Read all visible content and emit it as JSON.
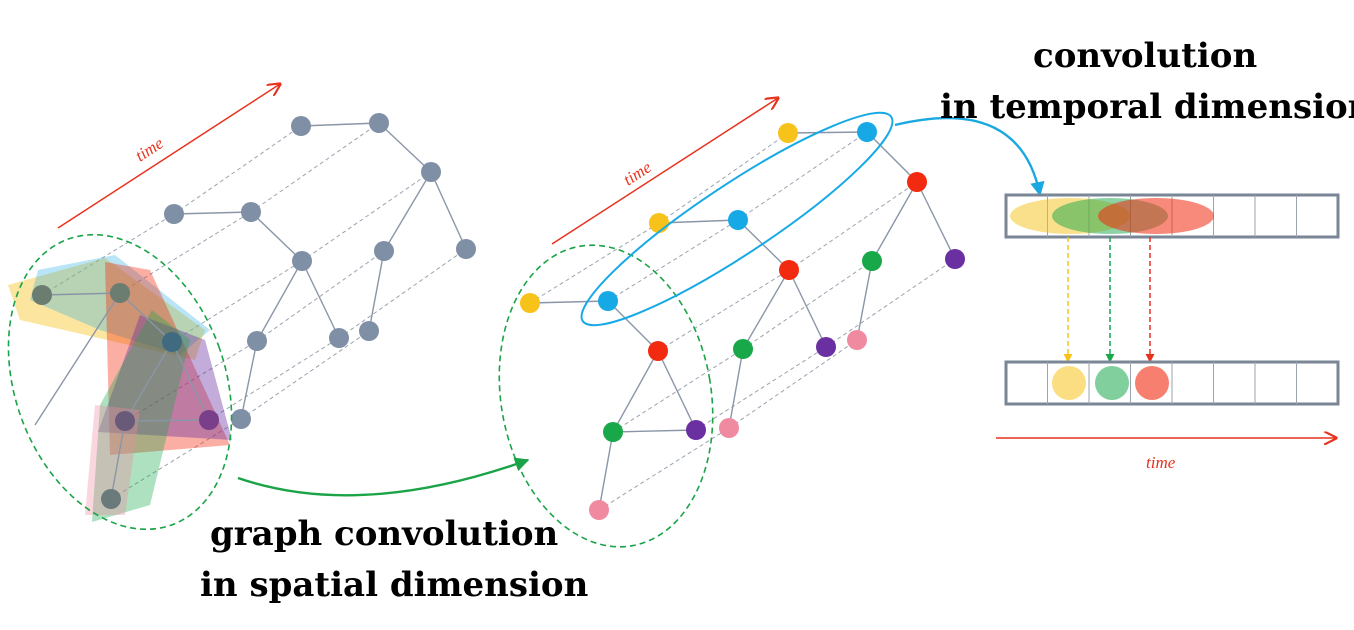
{
  "labels": {
    "time_left": "time",
    "time_middle": "time",
    "time_right": "time",
    "spatial_line1": "graph convolution",
    "spatial_line2": "in spatial dimension",
    "temporal_line1": "convolution",
    "temporal_line2": "in temporal dimension"
  },
  "colors": {
    "node_gray": "#7f8fa6",
    "edge_gray": "#8a96a8",
    "time_arrow": "#e8321e",
    "spatial_arrow": "#1aa347",
    "temporal_arrow": "#1aa8e0",
    "yellow": "#f7c21a",
    "blue": "#16a9e6",
    "red": "#f22a10",
    "green": "#18a84a",
    "purple": "#6a2fa0",
    "pink": "#f08aa0"
  },
  "temporal_cells": 8
}
